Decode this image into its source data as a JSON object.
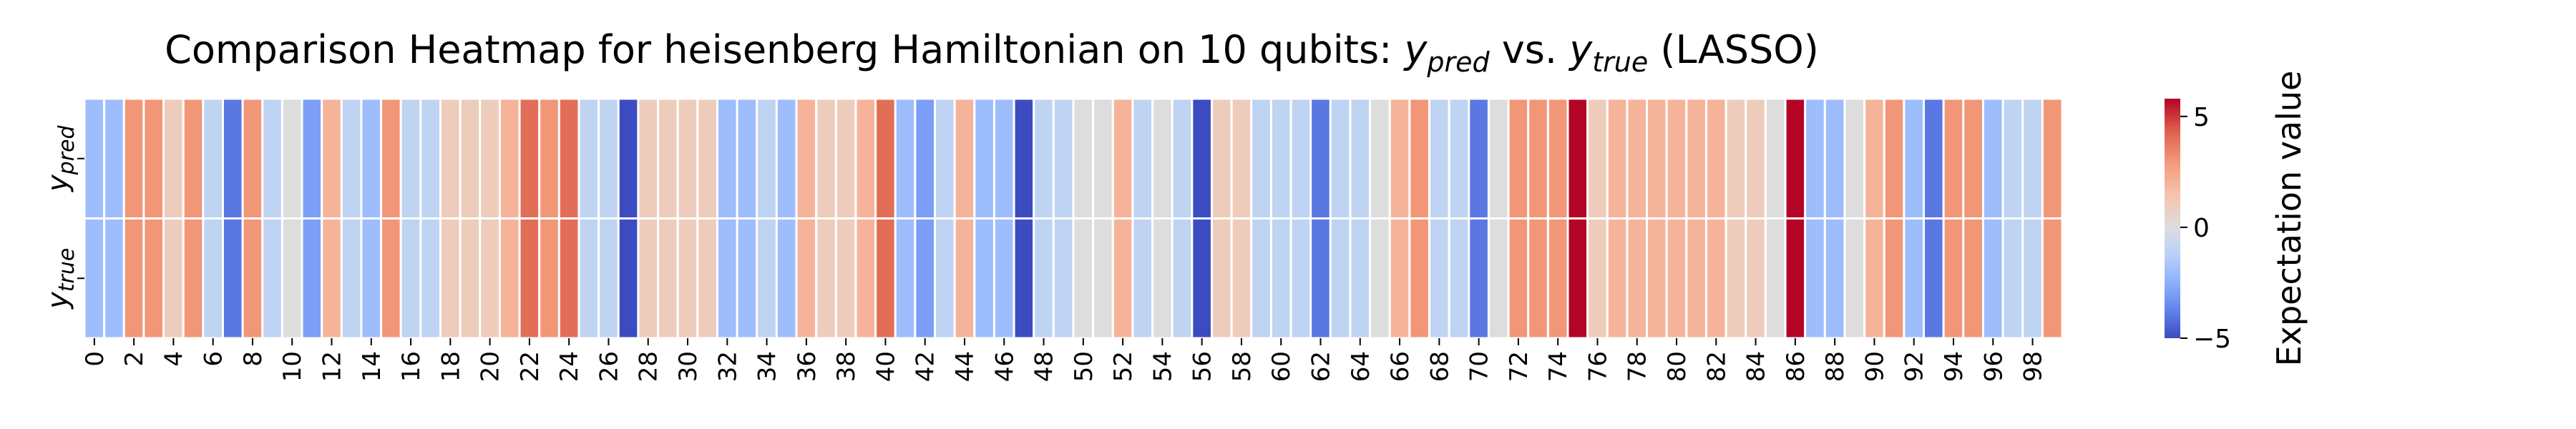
{
  "chart_data": {
    "type": "heatmap",
    "title": {
      "prefix": "Comparison Heatmap for heisenberg Hamiltonian on 10 qubits: ",
      "var1": "y",
      "var1_sub": "pred",
      "middle": " vs. ",
      "var2": "y",
      "var2_sub": "true",
      "suffix": " (LASSO)"
    },
    "rows": [
      {
        "label": "y",
        "sub": "pred"
      },
      {
        "label": "y",
        "sub": "true"
      }
    ],
    "x_tick_labels": [
      "0",
      "2",
      "4",
      "6",
      "8",
      "10",
      "12",
      "14",
      "16",
      "18",
      "20",
      "22",
      "24",
      "26",
      "28",
      "30",
      "32",
      "34",
      "36",
      "38",
      "40",
      "42",
      "44",
      "46",
      "48",
      "50",
      "52",
      "54",
      "56",
      "58",
      "60",
      "62",
      "64",
      "66",
      "68",
      "70",
      "72",
      "74",
      "76",
      "78",
      "80",
      "82",
      "84",
      "86",
      "88",
      "90",
      "92",
      "94",
      "96",
      "98"
    ],
    "x_tick_step": 2,
    "values": [
      -2,
      -2,
      3,
      3,
      1,
      3,
      -1,
      -4,
      3,
      -1,
      0,
      -3,
      2,
      -1,
      -2,
      3,
      -1,
      -1,
      1,
      1,
      1,
      2,
      4,
      3,
      4,
      -1,
      -1,
      -5,
      1,
      1,
      1,
      1,
      -2,
      -2,
      -1,
      -2,
      2,
      1,
      1,
      2,
      4,
      -2,
      -3,
      -1,
      2,
      -2,
      -2,
      -5,
      -1,
      -1,
      0,
      0,
      2,
      -1,
      0,
      -1,
      -5,
      1,
      1,
      -1,
      -1,
      -1,
      -4,
      -1,
      -1,
      0,
      2,
      3,
      -1,
      -1,
      -4,
      0,
      3,
      3,
      3,
      6,
      1,
      2,
      2,
      2,
      2,
      2,
      2,
      1,
      1,
      0,
      6,
      -2,
      -2,
      0,
      2,
      3,
      -2,
      -4,
      3,
      3,
      -2,
      -1,
      -1,
      3
    ],
    "colorbar": {
      "label": "Expectation value",
      "vmin": -5,
      "vmax": 5.8,
      "ticks": [
        -5,
        0,
        5
      ],
      "tick_labels": [
        "−5",
        "0",
        "5"
      ]
    },
    "colormap": "coolwarm"
  }
}
